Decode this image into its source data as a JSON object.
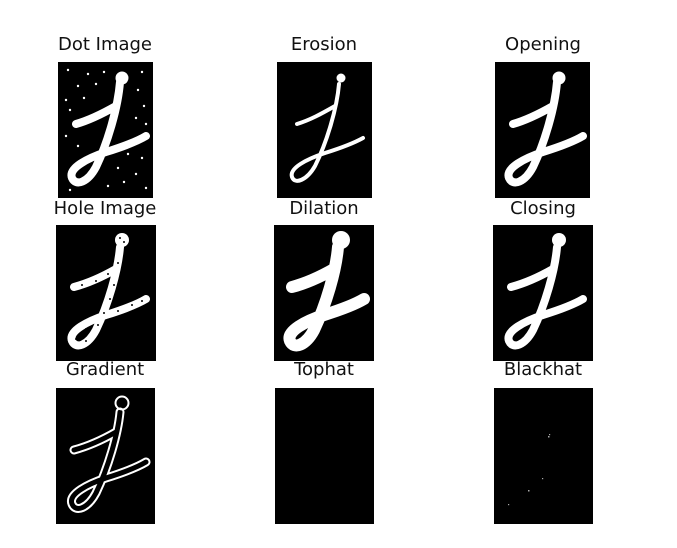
{
  "figure": {
    "panels": [
      {
        "title": "Dot Image",
        "icon": "letter-j-dot-noise"
      },
      {
        "title": "Erosion",
        "icon": "letter-j-thin"
      },
      {
        "title": "Opening",
        "icon": "letter-j-clean"
      },
      {
        "title": "Hole Image",
        "icon": "letter-j-with-holes"
      },
      {
        "title": "Dilation",
        "icon": "letter-j-thick"
      },
      {
        "title": "Closing",
        "icon": "letter-j-filled"
      },
      {
        "title": "Gradient",
        "icon": "letter-j-outline"
      },
      {
        "title": "Tophat",
        "icon": "black-image"
      },
      {
        "title": "Blackhat",
        "icon": "sparse-specks"
      }
    ],
    "colors": {
      "background": "#ffffff",
      "panel": "#000000",
      "stroke": "#ffffff",
      "text": "#111111"
    }
  }
}
